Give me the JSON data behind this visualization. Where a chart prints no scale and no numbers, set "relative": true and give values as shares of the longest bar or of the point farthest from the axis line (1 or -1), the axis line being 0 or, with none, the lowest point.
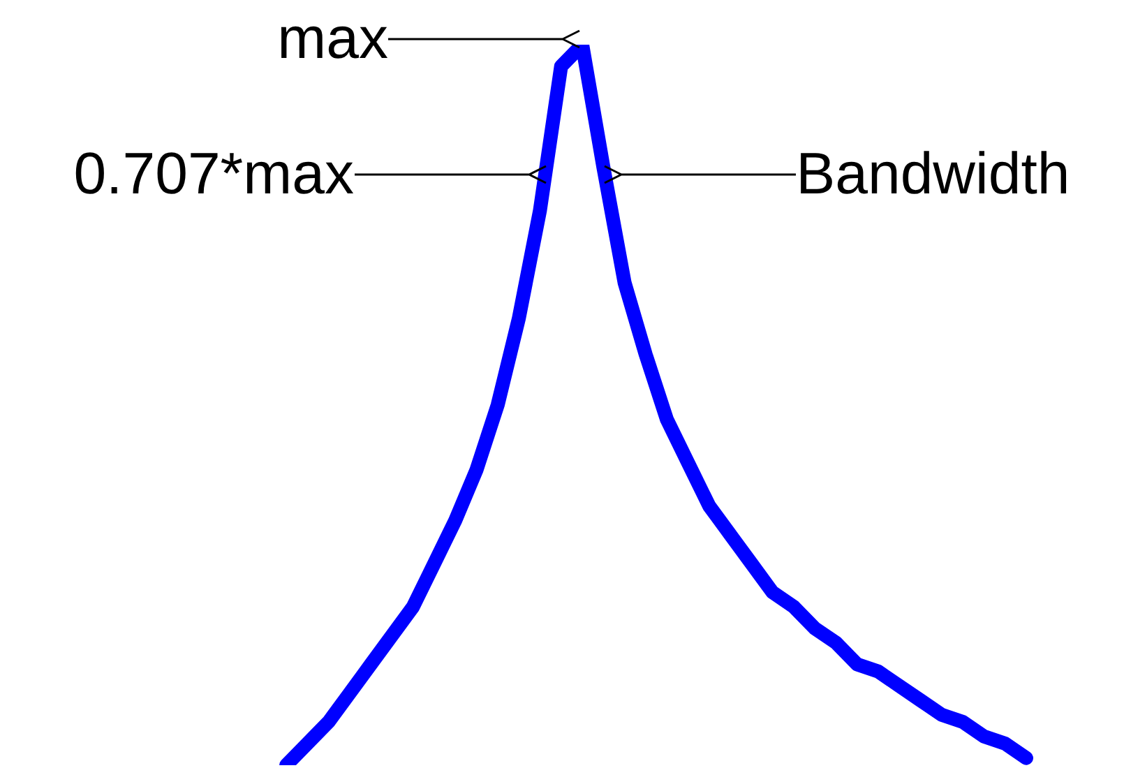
{
  "chart_data": {
    "type": "line",
    "relative": true,
    "legend": false,
    "marker": "none",
    "categories": [
      null,
      null,
      null,
      null,
      null,
      null,
      null,
      null,
      null,
      null,
      null,
      null,
      null,
      null,
      null,
      null,
      null,
      null,
      null,
      null,
      null,
      null,
      null,
      null,
      null,
      null,
      null,
      null,
      null,
      null,
      null,
      null,
      null,
      null,
      null,
      null
    ],
    "series": [
      {
        "color": "#0000ff",
        "values": [
          0,
          0.03,
          0.06,
          0.1,
          0.14,
          0.18,
          0.22,
          0.28,
          0.34,
          0.41,
          0.5,
          0.62,
          0.77,
          0.97,
          1,
          0.83,
          0.67,
          0.57,
          0.48,
          0.42,
          0.36,
          0.32,
          0.28,
          0.24,
          0.22,
          0.19,
          0.17,
          0.14,
          0.13,
          0.11,
          0.09,
          0.07,
          0.06,
          0.04,
          0.03,
          0.01
        ]
      }
    ],
    "annotations": [
      "max",
      "0.707*max",
      "Bandwidth"
    ]
  }
}
